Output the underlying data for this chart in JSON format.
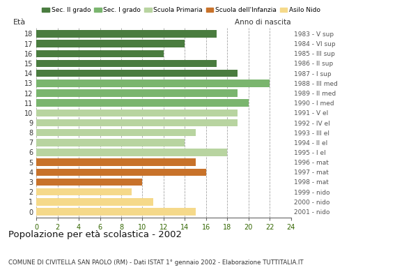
{
  "ages": [
    18,
    17,
    16,
    15,
    14,
    13,
    12,
    11,
    10,
    9,
    8,
    7,
    6,
    5,
    4,
    3,
    2,
    1,
    0
  ],
  "values": [
    17,
    14,
    12,
    17,
    19,
    22,
    19,
    20,
    19,
    19,
    15,
    14,
    18,
    15,
    16,
    10,
    9,
    11,
    15
  ],
  "right_labels": [
    "1983 - V sup",
    "1984 - VI sup",
    "1985 - III sup",
    "1986 - II sup",
    "1987 - I sup",
    "1988 - III med",
    "1989 - II med",
    "1990 - I med",
    "1991 - V el",
    "1992 - IV el",
    "1993 - III el",
    "1994 - II el",
    "1995 - I el",
    "1996 - mat",
    "1997 - mat",
    "1998 - mat",
    "1999 - nido",
    "2000 - nido",
    "2001 - nido"
  ],
  "bar_colors": [
    "#4a7c3f",
    "#4a7c3f",
    "#4a7c3f",
    "#4a7c3f",
    "#4a7c3f",
    "#7ab56e",
    "#7ab56e",
    "#7ab56e",
    "#b8d4a0",
    "#b8d4a0",
    "#b8d4a0",
    "#b8d4a0",
    "#b8d4a0",
    "#c8722a",
    "#c8722a",
    "#c8722a",
    "#f5d98a",
    "#f5d98a",
    "#f5d98a"
  ],
  "legend_labels": [
    "Sec. II grado",
    "Sec. I grado",
    "Scuola Primaria",
    "Scuola dell'Infanzia",
    "Asilo Nido"
  ],
  "legend_colors": [
    "#4a7c3f",
    "#7ab56e",
    "#b8d4a0",
    "#c8722a",
    "#f5d98a"
  ],
  "xlim": [
    0,
    24
  ],
  "xticks": [
    0,
    2,
    4,
    6,
    8,
    10,
    12,
    14,
    16,
    18,
    20,
    22,
    24
  ],
  "title": "Popolazione per età scolastica - 2002",
  "subtitle": "COMUNE DI CIVITELLA SAN PAOLO (RM) - Dati ISTAT 1° gennaio 2002 - Elaborazione TUTTITALIA.IT",
  "background_color": "#ffffff",
  "bar_height": 0.75,
  "ylim": [
    -0.6,
    18.6
  ]
}
